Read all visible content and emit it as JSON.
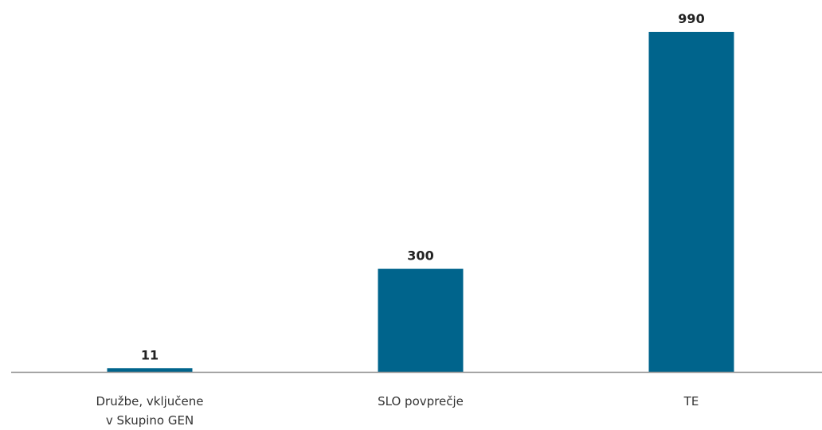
{
  "chart_data": {
    "type": "bar",
    "categories": [
      [
        "Družbe, vključene",
        "v Skupino GEN"
      ],
      [
        "SLO povprečje"
      ],
      [
        "TE"
      ]
    ],
    "values": [
      11,
      300,
      990
    ],
    "data_labels": [
      "11",
      "300",
      "990"
    ],
    "ylim": [
      0,
      1000
    ],
    "grid": false,
    "bar_color": "#00648C",
    "axis_color": "#8C8C8C"
  }
}
